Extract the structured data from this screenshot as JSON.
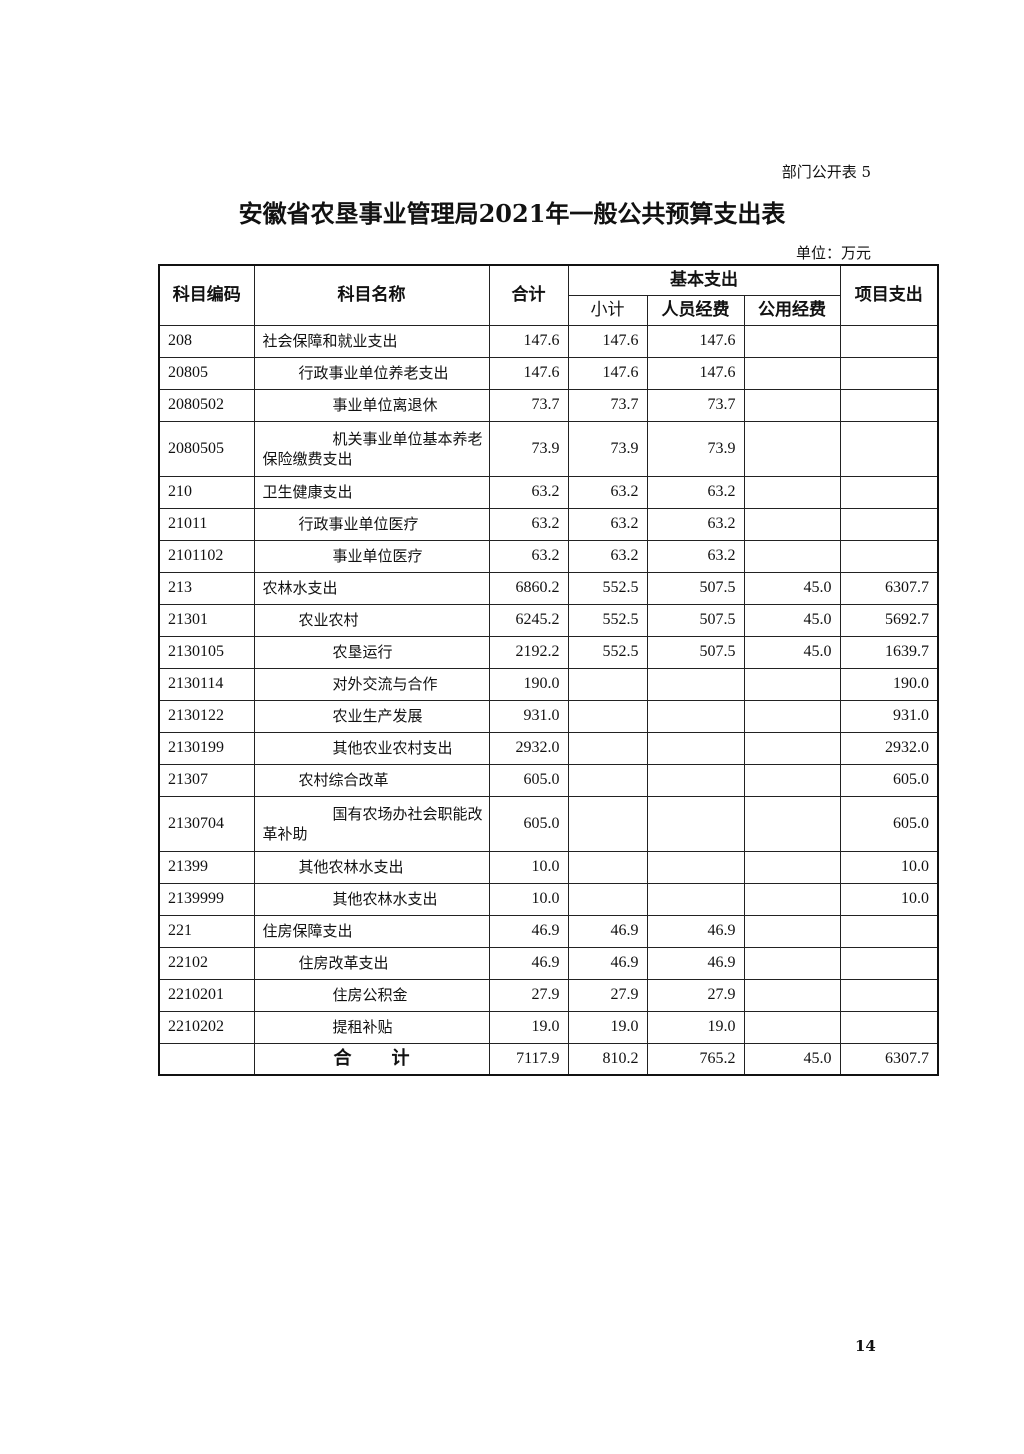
{
  "header": {
    "tag": "部门公开表 5",
    "title": "安徽省农垦事业管理局2021年一般公共预算支出表",
    "unit": "单位：万元"
  },
  "table": {
    "columns": {
      "code": "科目编码",
      "name": "科目名称",
      "total": "合计",
      "basic": "基本支出",
      "subtotal": "小计",
      "personnel": "人员经费",
      "public": "公用经费",
      "project": "项目支出"
    },
    "rows": [
      {
        "code": "208",
        "name": "社会保障和就业支出",
        "level": 0,
        "total": "147.6",
        "subtotal": "147.6",
        "personnel": "147.6",
        "public": "",
        "project": ""
      },
      {
        "code": "20805",
        "name": "行政事业单位养老支出",
        "level": 1,
        "total": "147.6",
        "subtotal": "147.6",
        "personnel": "147.6",
        "public": "",
        "project": ""
      },
      {
        "code": "2080502",
        "name": "事业单位离退休",
        "level": 2,
        "total": "73.7",
        "subtotal": "73.7",
        "personnel": "73.7",
        "public": "",
        "project": ""
      },
      {
        "code": "2080505",
        "name": "机关事业单位基本养老保险缴费支出",
        "level": 2,
        "total": "73.9",
        "subtotal": "73.9",
        "personnel": "73.9",
        "public": "",
        "project": ""
      },
      {
        "code": "210",
        "name": "卫生健康支出",
        "level": 0,
        "total": "63.2",
        "subtotal": "63.2",
        "personnel": "63.2",
        "public": "",
        "project": ""
      },
      {
        "code": "21011",
        "name": "行政事业单位医疗",
        "level": 1,
        "total": "63.2",
        "subtotal": "63.2",
        "personnel": "63.2",
        "public": "",
        "project": ""
      },
      {
        "code": "2101102",
        "name": "事业单位医疗",
        "level": 2,
        "total": "63.2",
        "subtotal": "63.2",
        "personnel": "63.2",
        "public": "",
        "project": ""
      },
      {
        "code": "213",
        "name": "农林水支出",
        "level": 0,
        "total": "6860.2",
        "subtotal": "552.5",
        "personnel": "507.5",
        "public": "45.0",
        "project": "6307.7"
      },
      {
        "code": "21301",
        "name": "农业农村",
        "level": 1,
        "total": "6245.2",
        "subtotal": "552.5",
        "personnel": "507.5",
        "public": "45.0",
        "project": "5692.7"
      },
      {
        "code": "2130105",
        "name": "农垦运行",
        "level": 2,
        "total": "2192.2",
        "subtotal": "552.5",
        "personnel": "507.5",
        "public": "45.0",
        "project": "1639.7"
      },
      {
        "code": "2130114",
        "name": "对外交流与合作",
        "level": 2,
        "total": "190.0",
        "subtotal": "",
        "personnel": "",
        "public": "",
        "project": "190.0"
      },
      {
        "code": "2130122",
        "name": "农业生产发展",
        "level": 2,
        "total": "931.0",
        "subtotal": "",
        "personnel": "",
        "public": "",
        "project": "931.0"
      },
      {
        "code": "2130199",
        "name": "其他农业农村支出",
        "level": 2,
        "total": "2932.0",
        "subtotal": "",
        "personnel": "",
        "public": "",
        "project": "2932.0"
      },
      {
        "code": "21307",
        "name": "农村综合改革",
        "level": 1,
        "total": "605.0",
        "subtotal": "",
        "personnel": "",
        "public": "",
        "project": "605.0"
      },
      {
        "code": "2130704",
        "name": "国有农场办社会职能改革补助",
        "level": 2,
        "total": "605.0",
        "subtotal": "",
        "personnel": "",
        "public": "",
        "project": "605.0"
      },
      {
        "code": "21399",
        "name": "其他农林水支出",
        "level": 1,
        "total": "10.0",
        "subtotal": "",
        "personnel": "",
        "public": "",
        "project": "10.0"
      },
      {
        "code": "2139999",
        "name": "其他农林水支出",
        "level": 2,
        "total": "10.0",
        "subtotal": "",
        "personnel": "",
        "public": "",
        "project": "10.0"
      },
      {
        "code": "221",
        "name": "住房保障支出",
        "level": 0,
        "total": "46.9",
        "subtotal": "46.9",
        "personnel": "46.9",
        "public": "",
        "project": ""
      },
      {
        "code": "22102",
        "name": "住房改革支出",
        "level": 1,
        "total": "46.9",
        "subtotal": "46.9",
        "personnel": "46.9",
        "public": "",
        "project": ""
      },
      {
        "code": "2210201",
        "name": "住房公积金",
        "level": 2,
        "total": "27.9",
        "subtotal": "27.9",
        "personnel": "27.9",
        "public": "",
        "project": ""
      },
      {
        "code": "2210202",
        "name": "提租补贴",
        "level": 2,
        "total": "19.0",
        "subtotal": "19.0",
        "personnel": "19.0",
        "public": "",
        "project": ""
      }
    ],
    "total_row": {
      "label": "合计",
      "total": "7117.9",
      "subtotal": "810.2",
      "personnel": "765.2",
      "public": "45.0",
      "project": "6307.7"
    }
  },
  "footer": {
    "page_number": "14"
  }
}
